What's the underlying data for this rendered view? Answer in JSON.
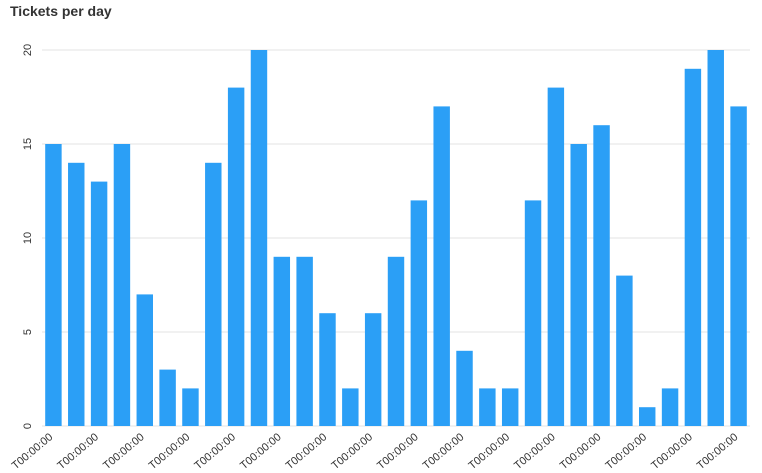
{
  "chart_data": {
    "type": "bar",
    "title": "Tickets per day",
    "categories": [
      "T00:00:00",
      null,
      "T00:00:00",
      null,
      "T00:00:00",
      null,
      "T00:00:00",
      null,
      "T00:00:00",
      null,
      "T00:00:00",
      null,
      "T00:00:00",
      null,
      "T00:00:00",
      null,
      "T00:00:00",
      null,
      "T00:00:00",
      null,
      "T00:00:00",
      null,
      "T00:00:00",
      null,
      "T00:00:00",
      null,
      "T00:00:00",
      null,
      "T00:00:00",
      null,
      "T00:00:00"
    ],
    "values": [
      15,
      14,
      13,
      15,
      7,
      3,
      2,
      14,
      18,
      20,
      9,
      9,
      6,
      2,
      6,
      9,
      12,
      17,
      4,
      2,
      2,
      12,
      18,
      15,
      16,
      8,
      1,
      2,
      19,
      20,
      17
    ],
    "color": "#2b9ff6",
    "ylim": [
      0,
      20
    ],
    "yticks": [
      0,
      5,
      10,
      15,
      20
    ],
    "grid": true
  }
}
